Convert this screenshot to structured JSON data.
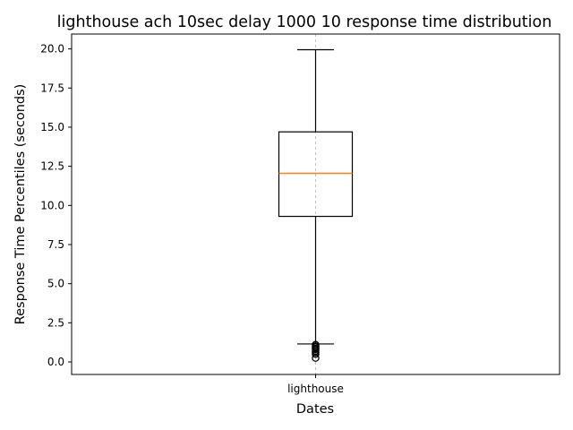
{
  "chart_data": {
    "type": "box",
    "title": "lighthouse ach 10sec delay 1000 10 response time distribution",
    "xlabel": "Dates",
    "ylabel": "Response Time Percentiles (seconds)",
    "categories": [
      "lighthouse"
    ],
    "ylim": [
      -0.8,
      20.95
    ],
    "yticks": [
      0.0,
      2.5,
      5.0,
      7.5,
      10.0,
      12.5,
      15.0,
      17.5,
      20.0
    ],
    "ytick_labels": [
      "0.0",
      "2.5",
      "5.0",
      "7.5",
      "10.0",
      "12.5",
      "15.0",
      "17.5",
      "20.0"
    ],
    "grid": "x-dashed",
    "boxes": [
      {
        "name": "lighthouse",
        "whisker_low": 1.15,
        "q1": 9.3,
        "median": 12.05,
        "q3": 14.7,
        "whisker_high": 19.95,
        "outliers": [
          1.1,
          1.0,
          0.95,
          0.85,
          0.8,
          0.7,
          0.6,
          0.5,
          0.25
        ]
      }
    ],
    "colors": {
      "box": "#000000",
      "median": "#ff7f0e",
      "grid": "#b0b0b0"
    }
  }
}
